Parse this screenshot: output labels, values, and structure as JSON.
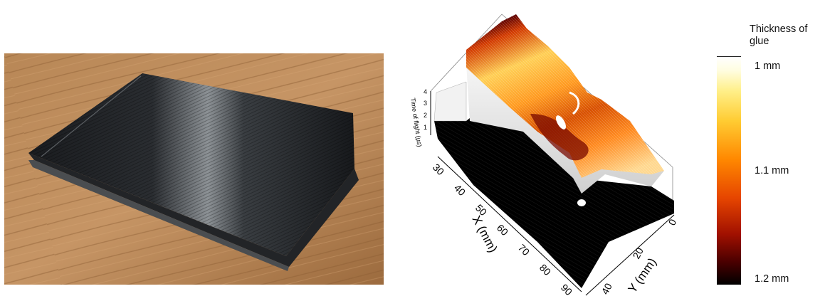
{
  "colorbar": {
    "title": "Thickness of glue",
    "labels": [
      "1 mm",
      "1.1 mm",
      "1.2 mm"
    ]
  },
  "plot": {
    "x_axis_label": "X (mm)",
    "y_axis_label": "Y (mm)",
    "z_axis_label": "Time of flight (μs)",
    "x_ticks": [
      "30",
      "40",
      "50",
      "60",
      "70",
      "80",
      "90"
    ],
    "y_ticks": [
      "0",
      "20",
      "40"
    ],
    "z_ticks": [
      "1",
      "2",
      "3",
      "4"
    ],
    "colormap": "hot",
    "colors": {
      "surface_low": "#000000",
      "surface_high": "#ffffff",
      "mid": "#ff6600"
    }
  }
}
